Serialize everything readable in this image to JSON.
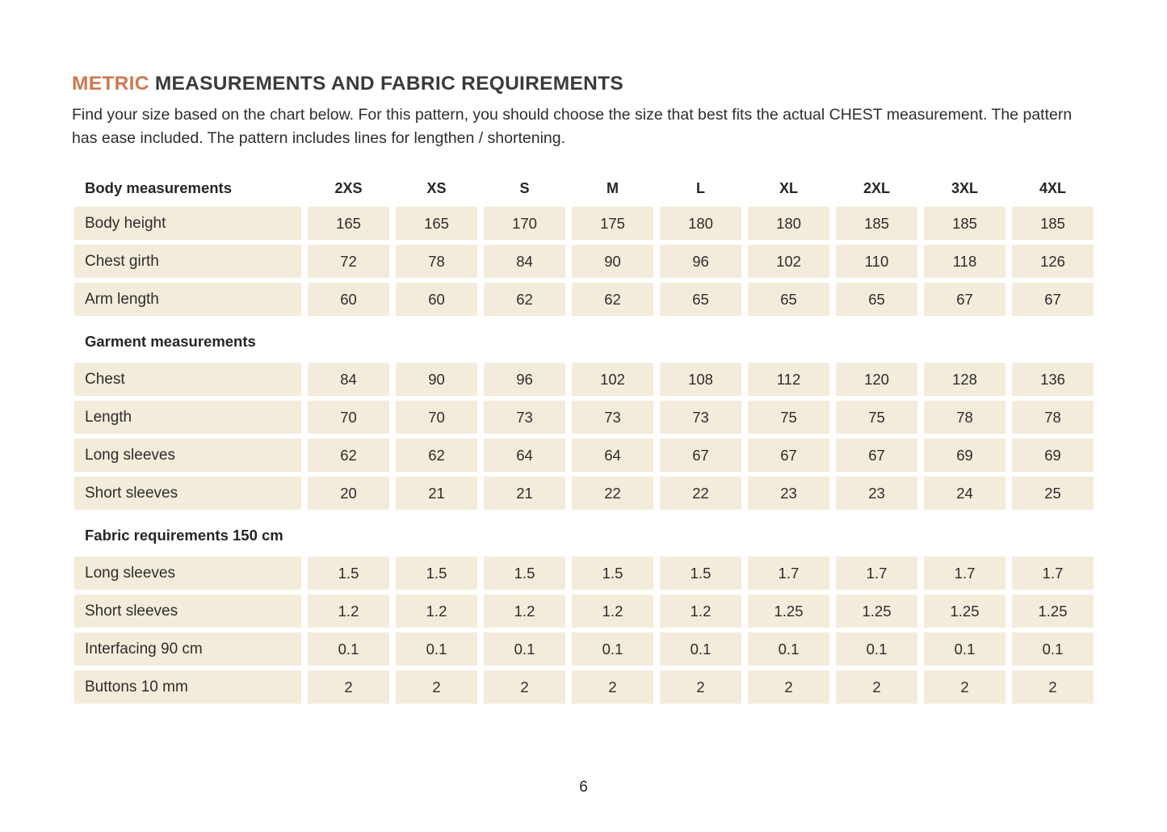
{
  "header": {
    "title_highlight": "METRIC",
    "title_rest": " MEASUREMENTS AND FABRIC REQUIREMENTS",
    "subtitle": "Find your size based on the chart below. For this pattern, you should choose the size that best fits the actual CHEST measurement. The pattern has ease included. The pattern includes lines for lengthen / shortening."
  },
  "colors": {
    "accent": "#cf7850",
    "cell_background": "#f3ecdb",
    "text": "#2d2d2d"
  },
  "table": {
    "sizes": [
      "2XS",
      "XS",
      "S",
      "M",
      "L",
      "XL",
      "2XL",
      "3XL",
      "4XL"
    ],
    "sections": [
      {
        "label": "Body measurements",
        "show_sizes": true,
        "rows": [
          {
            "label": "Body height",
            "values": [
              "165",
              "165",
              "170",
              "175",
              "180",
              "180",
              "185",
              "185",
              "185"
            ]
          },
          {
            "label": "Chest girth",
            "values": [
              "72",
              "78",
              "84",
              "90",
              "96",
              "102",
              "110",
              "118",
              "126"
            ]
          },
          {
            "label": "Arm length",
            "values": [
              "60",
              "60",
              "62",
              "62",
              "65",
              "65",
              "65",
              "67",
              "67"
            ]
          }
        ]
      },
      {
        "label": "Garment measurements",
        "show_sizes": false,
        "rows": [
          {
            "label": "Chest",
            "values": [
              "84",
              "90",
              "96",
              "102",
              "108",
              "112",
              "120",
              "128",
              "136"
            ]
          },
          {
            "label": "Length",
            "values": [
              "70",
              "70",
              "73",
              "73",
              "73",
              "75",
              "75",
              "78",
              "78"
            ]
          },
          {
            "label": "Long sleeves",
            "values": [
              "62",
              "62",
              "64",
              "64",
              "67",
              "67",
              "67",
              "69",
              "69"
            ]
          },
          {
            "label": "Short sleeves",
            "values": [
              "20",
              "21",
              "21",
              "22",
              "22",
              "23",
              "23",
              "24",
              "25"
            ]
          }
        ]
      },
      {
        "label": "Fabric requirements 150 cm",
        "show_sizes": false,
        "rows": [
          {
            "label": "Long sleeves",
            "values": [
              "1.5",
              "1.5",
              "1.5",
              "1.5",
              "1.5",
              "1.7",
              "1.7",
              "1.7",
              "1.7"
            ]
          },
          {
            "label": "Short sleeves",
            "values": [
              "1.2",
              "1.2",
              "1.2",
              "1.2",
              "1.2",
              "1.25",
              "1.25",
              "1.25",
              "1.25"
            ]
          },
          {
            "label": "Interfacing 90 cm",
            "values": [
              "0.1",
              "0.1",
              "0.1",
              "0.1",
              "0.1",
              "0.1",
              "0.1",
              "0.1",
              "0.1"
            ]
          },
          {
            "label": "Buttons 10 mm",
            "values": [
              "2",
              "2",
              "2",
              "2",
              "2",
              "2",
              "2",
              "2",
              "2"
            ]
          }
        ]
      }
    ]
  },
  "footer": {
    "page_number": "6"
  }
}
